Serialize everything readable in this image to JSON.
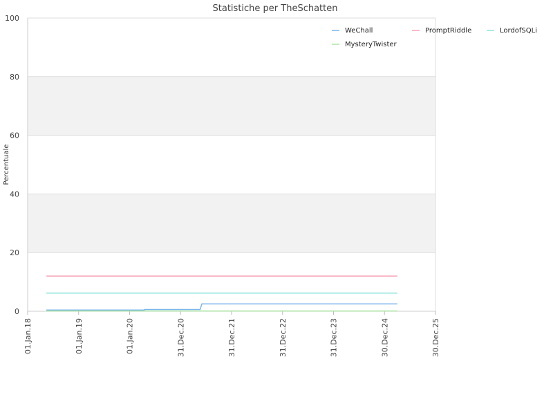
{
  "chart_data": {
    "type": "line",
    "title": "Statistiche per TheSchatten",
    "xlabel": "",
    "ylabel": "Percentuale",
    "ylim": [
      0,
      100
    ],
    "y_ticks": [
      "0",
      "20",
      "40",
      "60",
      "80",
      "100"
    ],
    "xlim": [
      "2018-01-01",
      "2025-12-30"
    ],
    "x_ticks": [
      {
        "date": "2018-01-01",
        "label": "01.Jan.18"
      },
      {
        "date": "2019-01-01",
        "label": "01.Jan.19"
      },
      {
        "date": "2020-01-01",
        "label": "01.Jan.20"
      },
      {
        "date": "2020-12-31",
        "label": "31.Dec.20"
      },
      {
        "date": "2021-12-31",
        "label": "31.Dec.21"
      },
      {
        "date": "2022-12-31",
        "label": "31.Dec.22"
      },
      {
        "date": "2023-12-31",
        "label": "31.Dec.23"
      },
      {
        "date": "2024-12-30",
        "label": "30.Dec.24"
      },
      {
        "date": "2025-12-30",
        "label": "30.Dec.25"
      }
    ],
    "grid": true,
    "alternating_bands": true,
    "legend_position": "top-right",
    "series": [
      {
        "name": "WeChall",
        "color": "#7cb5ec",
        "points": [
          [
            "2018-05-15",
            0.4
          ],
          [
            "2020-04-15",
            0.4
          ],
          [
            "2020-04-16",
            0.6
          ],
          [
            "2021-05-20",
            0.6
          ],
          [
            "2021-06-01",
            2.5
          ],
          [
            "2025-04-01",
            2.5
          ]
        ]
      },
      {
        "name": "PromptRiddle",
        "color": "#f7a3b5",
        "points": [
          [
            "2018-05-15",
            12
          ],
          [
            "2025-04-01",
            12
          ]
        ]
      },
      {
        "name": "LordofSQLi",
        "color": "#8ee4dc",
        "points": [
          [
            "2018-05-15",
            6.2
          ],
          [
            "2025-04-01",
            6.2
          ]
        ]
      },
      {
        "name": "MysteryTwister",
        "color": "#a8e6a0",
        "points": [
          [
            "2018-05-15",
            0.1
          ],
          [
            "2025-04-01",
            0.1
          ]
        ]
      }
    ]
  }
}
